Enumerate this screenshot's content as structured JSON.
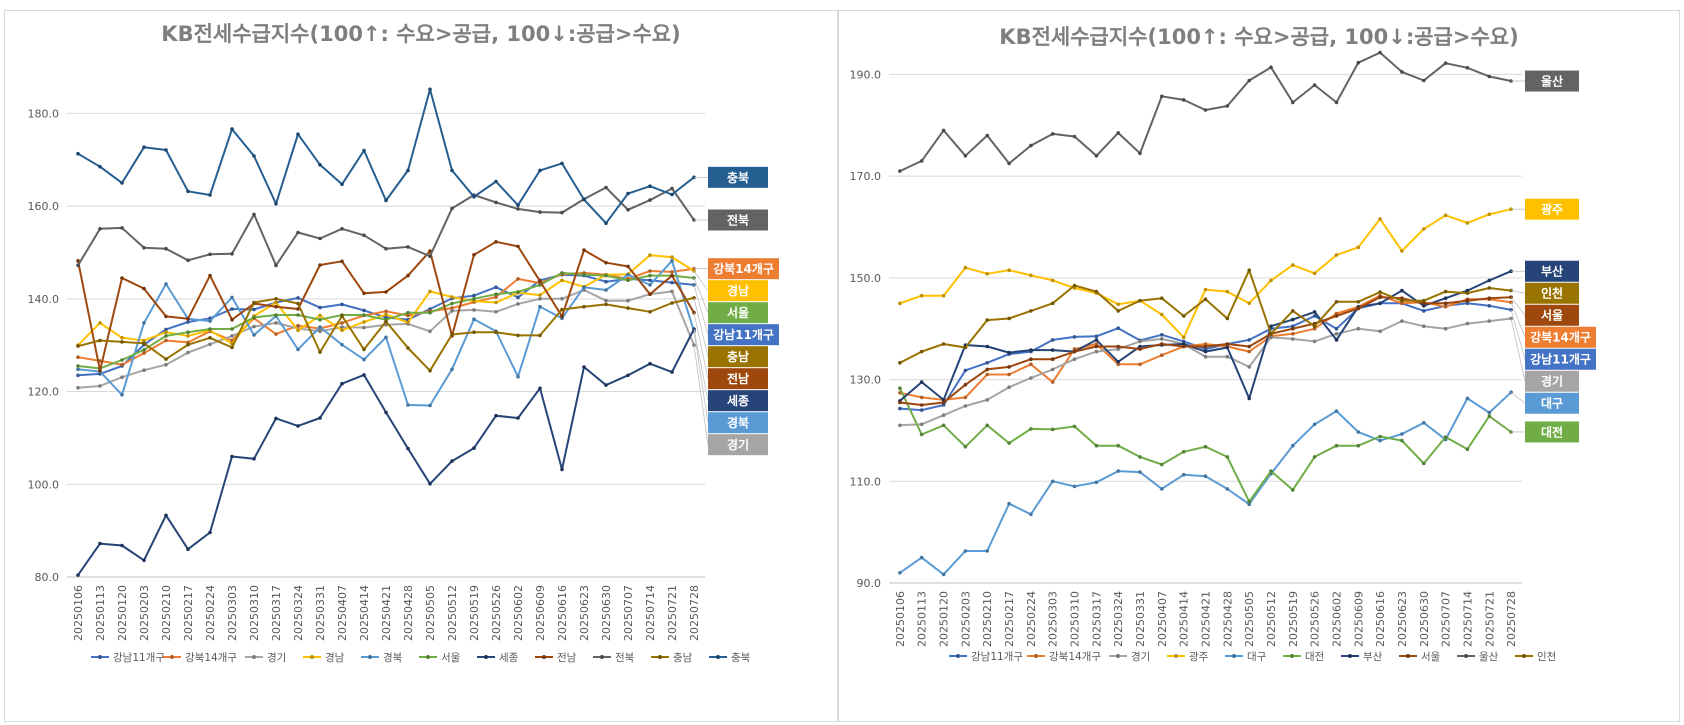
{
  "chart_data": [
    {
      "type": "line",
      "title": "KB전세수급지수(100↑: 수요>공급, 100↓:공급>수요)",
      "ylim": [
        80,
        190
      ],
      "yticks": [
        "80.0",
        "100.0",
        "120.0",
        "140.0",
        "160.0",
        "180.0"
      ],
      "grid": "horizontal",
      "legend_position": "bottom",
      "x": [
        "20250106",
        "20250113",
        "20250120",
        "20250203",
        "20250210",
        "20250217",
        "20250224",
        "20250303",
        "20250310",
        "20250317",
        "20250324",
        "20250331",
        "20250407",
        "20250414",
        "20250421",
        "20250428",
        "20250505",
        "20250512",
        "20250519",
        "20250526",
        "20250602",
        "20250609",
        "20250616",
        "20250623",
        "20250630",
        "20250707",
        "20250714",
        "20250721",
        "20250728"
      ],
      "series": [
        {
          "name": "강남11개구",
          "color": "#4472c4",
          "label": "강남11개구",
          "values": [
            123.5,
            123.8,
            125.5,
            130.1,
            133.4,
            135.0,
            135.8,
            137.8,
            137.7,
            139.2,
            140.2,
            138.1,
            138.8,
            137.5,
            136.0,
            135.5,
            137.8,
            140.1,
            140.7,
            142.5,
            140.3,
            144.0,
            145.2,
            145.0,
            143.7,
            144.3,
            144.0,
            143.5,
            143.0
          ]
        },
        {
          "name": "강북14개구",
          "color": "#ed7d31",
          "label": "강북14개구",
          "values": [
            127.4,
            126.6,
            125.8,
            128.3,
            131.0,
            130.6,
            133.0,
            131.0,
            135.8,
            132.4,
            134.2,
            133.6,
            134.8,
            136.4,
            137.3,
            136.4,
            137.3,
            138.0,
            139.3,
            140.4,
            144.3,
            143.4,
            145.3,
            145.6,
            145.2,
            144.3,
            146.0,
            145.8,
            146.5
          ]
        },
        {
          "name": "경기",
          "color": "#a5a5a5",
          "label": "경기",
          "values": [
            120.8,
            121.2,
            123.1,
            124.6,
            125.8,
            128.4,
            130.2,
            132.0,
            134.0,
            134.8,
            133.6,
            133.0,
            133.9,
            133.8,
            134.4,
            134.6,
            133.0,
            137.4,
            137.6,
            137.2,
            138.9,
            140.0,
            140.0,
            141.9,
            139.6,
            139.6,
            141.0,
            141.6,
            130.0
          ]
        },
        {
          "name": "경남",
          "color": "#ffc000",
          "label": "경남",
          "values": [
            130.0,
            134.8,
            131.6,
            131.0,
            132.8,
            132.0,
            133.2,
            130.3,
            136.3,
            139.2,
            133.2,
            136.4,
            133.2,
            135.0,
            136.6,
            134.9,
            141.6,
            140.4,
            139.5,
            139.2,
            141.3,
            140.8,
            144.0,
            142.6,
            145.2,
            145.3,
            149.4,
            149.0,
            146.0
          ]
        },
        {
          "name": "경북",
          "color": "#5b9bd5",
          "label": "경북",
          "values": [
            124.8,
            124.3,
            119.3,
            134.8,
            143.2,
            135.7,
            135.2,
            140.3,
            132.2,
            136.3,
            129.1,
            133.9,
            130.1,
            126.9,
            131.7,
            117.1,
            117.0,
            124.8,
            135.6,
            133.0,
            123.2,
            138.3,
            135.8,
            142.5,
            141.9,
            145.2,
            143.0,
            148.2,
            133.0
          ]
        },
        {
          "name": "서울",
          "color": "#70ad47",
          "label": "서울",
          "values": [
            125.5,
            125.0,
            126.8,
            129.0,
            132.0,
            132.8,
            133.5,
            133.5,
            136.0,
            136.5,
            136.5,
            135.5,
            136.5,
            136.5,
            135.5,
            137.0,
            137.0,
            139.0,
            140.0,
            141.0,
            141.5,
            143.0,
            145.6,
            145.2,
            145.0,
            144.0,
            145.0,
            145.0,
            144.5
          ]
        },
        {
          "name": "세종",
          "color": "#264478",
          "label": "세종",
          "values": [
            80.4,
            87.2,
            86.8,
            83.6,
            93.3,
            86.0,
            89.6,
            106.0,
            105.5,
            114.2,
            112.6,
            114.3,
            121.7,
            123.6,
            115.5,
            107.7,
            100.1,
            105.0,
            107.8,
            114.8,
            114.3,
            120.7,
            103.2,
            125.3,
            121.4,
            123.5,
            126.0,
            124.2,
            133.5
          ]
        },
        {
          "name": "전남",
          "color": "#9e480e",
          "label": "전남",
          "values": [
            148.2,
            124.5,
            144.5,
            142.2,
            136.2,
            135.7,
            145.0,
            135.5,
            139.0,
            138.3,
            137.8,
            147.3,
            148.1,
            141.2,
            141.5,
            145.0,
            150.3,
            132.0,
            149.5,
            152.3,
            151.3,
            143.8,
            136.2,
            150.5,
            147.8,
            147.0,
            141.0,
            145.0,
            137.0
          ]
        },
        {
          "name": "전북",
          "color": "#636363",
          "label": "전북",
          "values": [
            147.2,
            155.1,
            155.3,
            151.0,
            150.8,
            148.3,
            149.6,
            149.7,
            158.2,
            147.2,
            154.3,
            153.0,
            155.1,
            153.7,
            150.8,
            151.2,
            149.2,
            159.5,
            162.4,
            160.8,
            159.4,
            158.7,
            158.6,
            161.5,
            164.0,
            159.2,
            161.3,
            163.8,
            157.0
          ]
        },
        {
          "name": "충남",
          "color": "#997300",
          "label": "충남",
          "values": [
            129.8,
            131.0,
            130.7,
            130.4,
            127.0,
            130.1,
            131.6,
            129.5,
            139.2,
            140.0,
            139.0,
            128.5,
            136.3,
            129.1,
            135.1,
            129.4,
            124.5,
            132.3,
            132.8,
            132.8,
            132.1,
            132.1,
            137.7,
            138.3,
            138.8,
            138.0,
            137.2,
            139.1,
            140.2
          ]
        },
        {
          "name": "충북",
          "color": "#255e91",
          "label": "충북",
          "values": [
            171.3,
            168.5,
            165.0,
            172.7,
            172.1,
            163.2,
            162.4,
            176.6,
            170.8,
            160.5,
            175.5,
            168.9,
            164.7,
            172.0,
            161.2,
            167.7,
            185.2,
            167.7,
            162.0,
            165.3,
            160.2,
            167.7,
            169.2,
            161.4,
            156.3,
            162.7,
            164.3,
            162.5,
            166.2
          ]
        }
      ]
    },
    {
      "type": "line",
      "title": "KB전세수급지수(100↑: 수요>공급, 100↓:공급>수요)",
      "ylim": [
        90,
        195
      ],
      "yticks": [
        "90.0",
        "110.0",
        "130.0",
        "150.0",
        "170.0",
        "190.0"
      ],
      "grid": "horizontal",
      "legend_position": "bottom",
      "x": [
        "20250106",
        "20250113",
        "20250120",
        "20250203",
        "20250210",
        "20250217",
        "20250224",
        "20250303",
        "20250310",
        "20250317",
        "20250324",
        "20250331",
        "20250407",
        "20250414",
        "20250421",
        "20250428",
        "20250505",
        "20250512",
        "20250519",
        "20250526",
        "20250602",
        "20250609",
        "20250616",
        "20250623",
        "20250630",
        "20250707",
        "20250714",
        "20250721",
        "20250728"
      ],
      "series": [
        {
          "name": "강남11개구",
          "color": "#4472c4",
          "label": "강남11개구",
          "values": [
            124.3,
            124.0,
            125.0,
            131.8,
            133.3,
            135.0,
            135.5,
            137.8,
            138.4,
            138.5,
            140.1,
            137.7,
            138.8,
            137.5,
            136.0,
            137.0,
            137.8,
            140.0,
            140.5,
            142.5,
            140.0,
            144.0,
            145.0,
            145.0,
            143.5,
            144.5,
            145.0,
            144.5,
            143.7
          ]
        },
        {
          "name": "강북14개구",
          "color": "#ed7d31",
          "label": "강북14개구",
          "values": [
            127.4,
            126.5,
            126.0,
            126.5,
            131.0,
            131.0,
            133.0,
            129.5,
            136.0,
            137.0,
            133.0,
            133.0,
            134.8,
            136.5,
            137.0,
            136.5,
            135.5,
            138.5,
            139.0,
            140.0,
            143.0,
            144.3,
            146.5,
            145.0,
            145.2,
            144.3,
            145.8,
            145.8,
            145.2
          ]
        },
        {
          "name": "경기",
          "color": "#a5a5a5",
          "label": "경기",
          "values": [
            121.0,
            121.2,
            123.0,
            124.8,
            126.0,
            128.5,
            130.3,
            132.0,
            134.0,
            135.5,
            136.0,
            137.5,
            138.0,
            137.0,
            134.5,
            134.5,
            132.5,
            138.3,
            138.0,
            137.5,
            139.0,
            140.0,
            139.5,
            141.5,
            140.5,
            140.0,
            141.0,
            141.5,
            142.0
          ]
        },
        {
          "name": "광주",
          "color": "#ffc000",
          "label": "광주",
          "values": [
            145.0,
            146.5,
            146.5,
            152.0,
            150.8,
            151.5,
            150.5,
            149.5,
            148.0,
            147.0,
            144.8,
            145.5,
            142.8,
            138.3,
            147.7,
            147.3,
            145.0,
            149.5,
            152.5,
            150.9,
            154.5,
            156.0,
            161.6,
            155.3,
            159.6,
            162.3,
            160.8,
            162.5,
            163.5
          ]
        },
        {
          "name": "대구",
          "color": "#5b9bd5",
          "label": "대구",
          "values": [
            92.0,
            95.0,
            91.7,
            96.3,
            96.3,
            105.6,
            103.5,
            110.0,
            109.0,
            109.8,
            112.0,
            111.8,
            108.5,
            111.3,
            111.0,
            108.5,
            105.5,
            111.5,
            117.0,
            121.2,
            123.8,
            119.7,
            118.0,
            119.3,
            121.5,
            118.2,
            126.3,
            123.5,
            127.5
          ]
        },
        {
          "name": "대전",
          "color": "#70ad47",
          "label": "대전",
          "values": [
            128.3,
            119.2,
            121.0,
            116.8,
            121.0,
            117.5,
            120.3,
            120.2,
            120.8,
            117.0,
            117.0,
            114.8,
            113.3,
            115.8,
            116.8,
            114.8,
            106.0,
            112.0,
            108.3,
            114.8,
            117.0,
            117.0,
            118.8,
            118.0,
            113.5,
            118.7,
            116.3,
            122.8,
            119.7
          ]
        },
        {
          "name": "부산",
          "color": "#264478",
          "label": "부산",
          "values": [
            125.8,
            129.5,
            126.0,
            136.8,
            136.5,
            135.3,
            135.8,
            135.8,
            135.5,
            137.8,
            133.5,
            136.5,
            136.8,
            137.0,
            135.5,
            136.3,
            126.3,
            140.5,
            141.8,
            143.3,
            137.8,
            144.3,
            145.0,
            147.5,
            144.5,
            146.0,
            147.5,
            149.5,
            151.3
          ]
        },
        {
          "name": "서울",
          "color": "#9e480e",
          "label": "서울",
          "values": [
            125.5,
            125.0,
            125.5,
            129.0,
            132.0,
            132.5,
            134.0,
            134.0,
            135.5,
            136.5,
            136.5,
            136.0,
            137.0,
            136.5,
            136.5,
            137.0,
            136.5,
            139.0,
            140.0,
            141.0,
            142.5,
            144.0,
            146.2,
            146.0,
            145.0,
            145.0,
            145.5,
            146.0,
            146.2
          ]
        },
        {
          "name": "울산",
          "color": "#636363",
          "label": "울산",
          "values": [
            171.0,
            173.0,
            179.0,
            174.0,
            178.0,
            172.5,
            176.0,
            178.3,
            177.8,
            174.0,
            178.5,
            174.5,
            185.7,
            185.0,
            183.0,
            183.8,
            188.8,
            191.4,
            184.5,
            187.9,
            184.5,
            192.3,
            194.3,
            190.5,
            188.8,
            192.2,
            191.3,
            189.6,
            188.7
          ]
        },
        {
          "name": "인천",
          "color": "#997300",
          "label": "인천",
          "values": [
            133.3,
            135.5,
            137.0,
            136.3,
            141.7,
            142.0,
            143.5,
            145.0,
            148.5,
            147.3,
            143.5,
            145.5,
            146.0,
            142.5,
            145.8,
            142.0,
            151.5,
            139.0,
            143.5,
            140.5,
            145.3,
            145.3,
            147.2,
            145.5,
            145.5,
            147.3,
            147.0,
            148.0,
            147.5
          ]
        }
      ]
    }
  ]
}
